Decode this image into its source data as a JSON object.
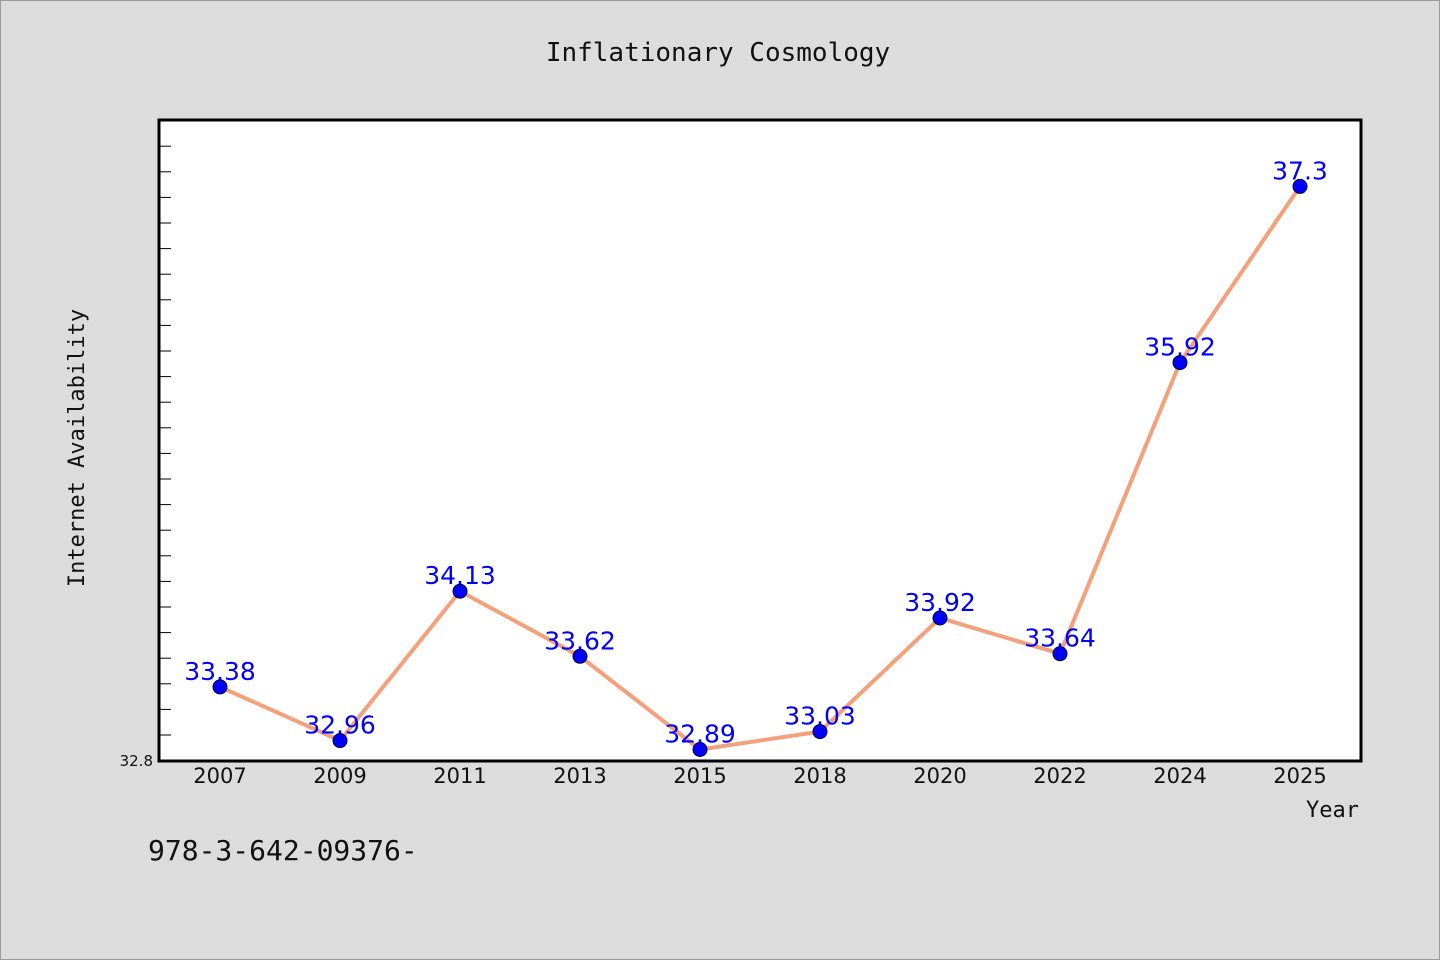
{
  "footer_text": "978-3-642-09376-",
  "colors": {
    "background": "#dcdcdc",
    "plot_background": "#ffffff",
    "line": "#f4a07a",
    "marker": "#0000ff",
    "data_label": "#0000ff",
    "axis": "#000000"
  },
  "chart_data": {
    "type": "line",
    "title": "Inflationary Cosmology",
    "xlabel": "Year",
    "ylabel": "Internet Availability",
    "categories": [
      "2007",
      "2009",
      "2011",
      "2013",
      "2015",
      "2018",
      "2020",
      "2022",
      "2024",
      "2025"
    ],
    "values": [
      33.38,
      32.96,
      34.13,
      33.62,
      32.89,
      33.03,
      33.92,
      33.64,
      35.92,
      37.3
    ],
    "data_labels": [
      "33.38",
      "32.96",
      "34.13",
      "33.62",
      "32.89",
      "33.03",
      "33.92",
      "33.64",
      "35.92",
      "37.3"
    ],
    "ylim": [
      32.8,
      37.82
    ],
    "yticks": [
      32.8
    ],
    "ytick_labels": [
      "32.8"
    ],
    "grid": false,
    "legend": "none"
  }
}
